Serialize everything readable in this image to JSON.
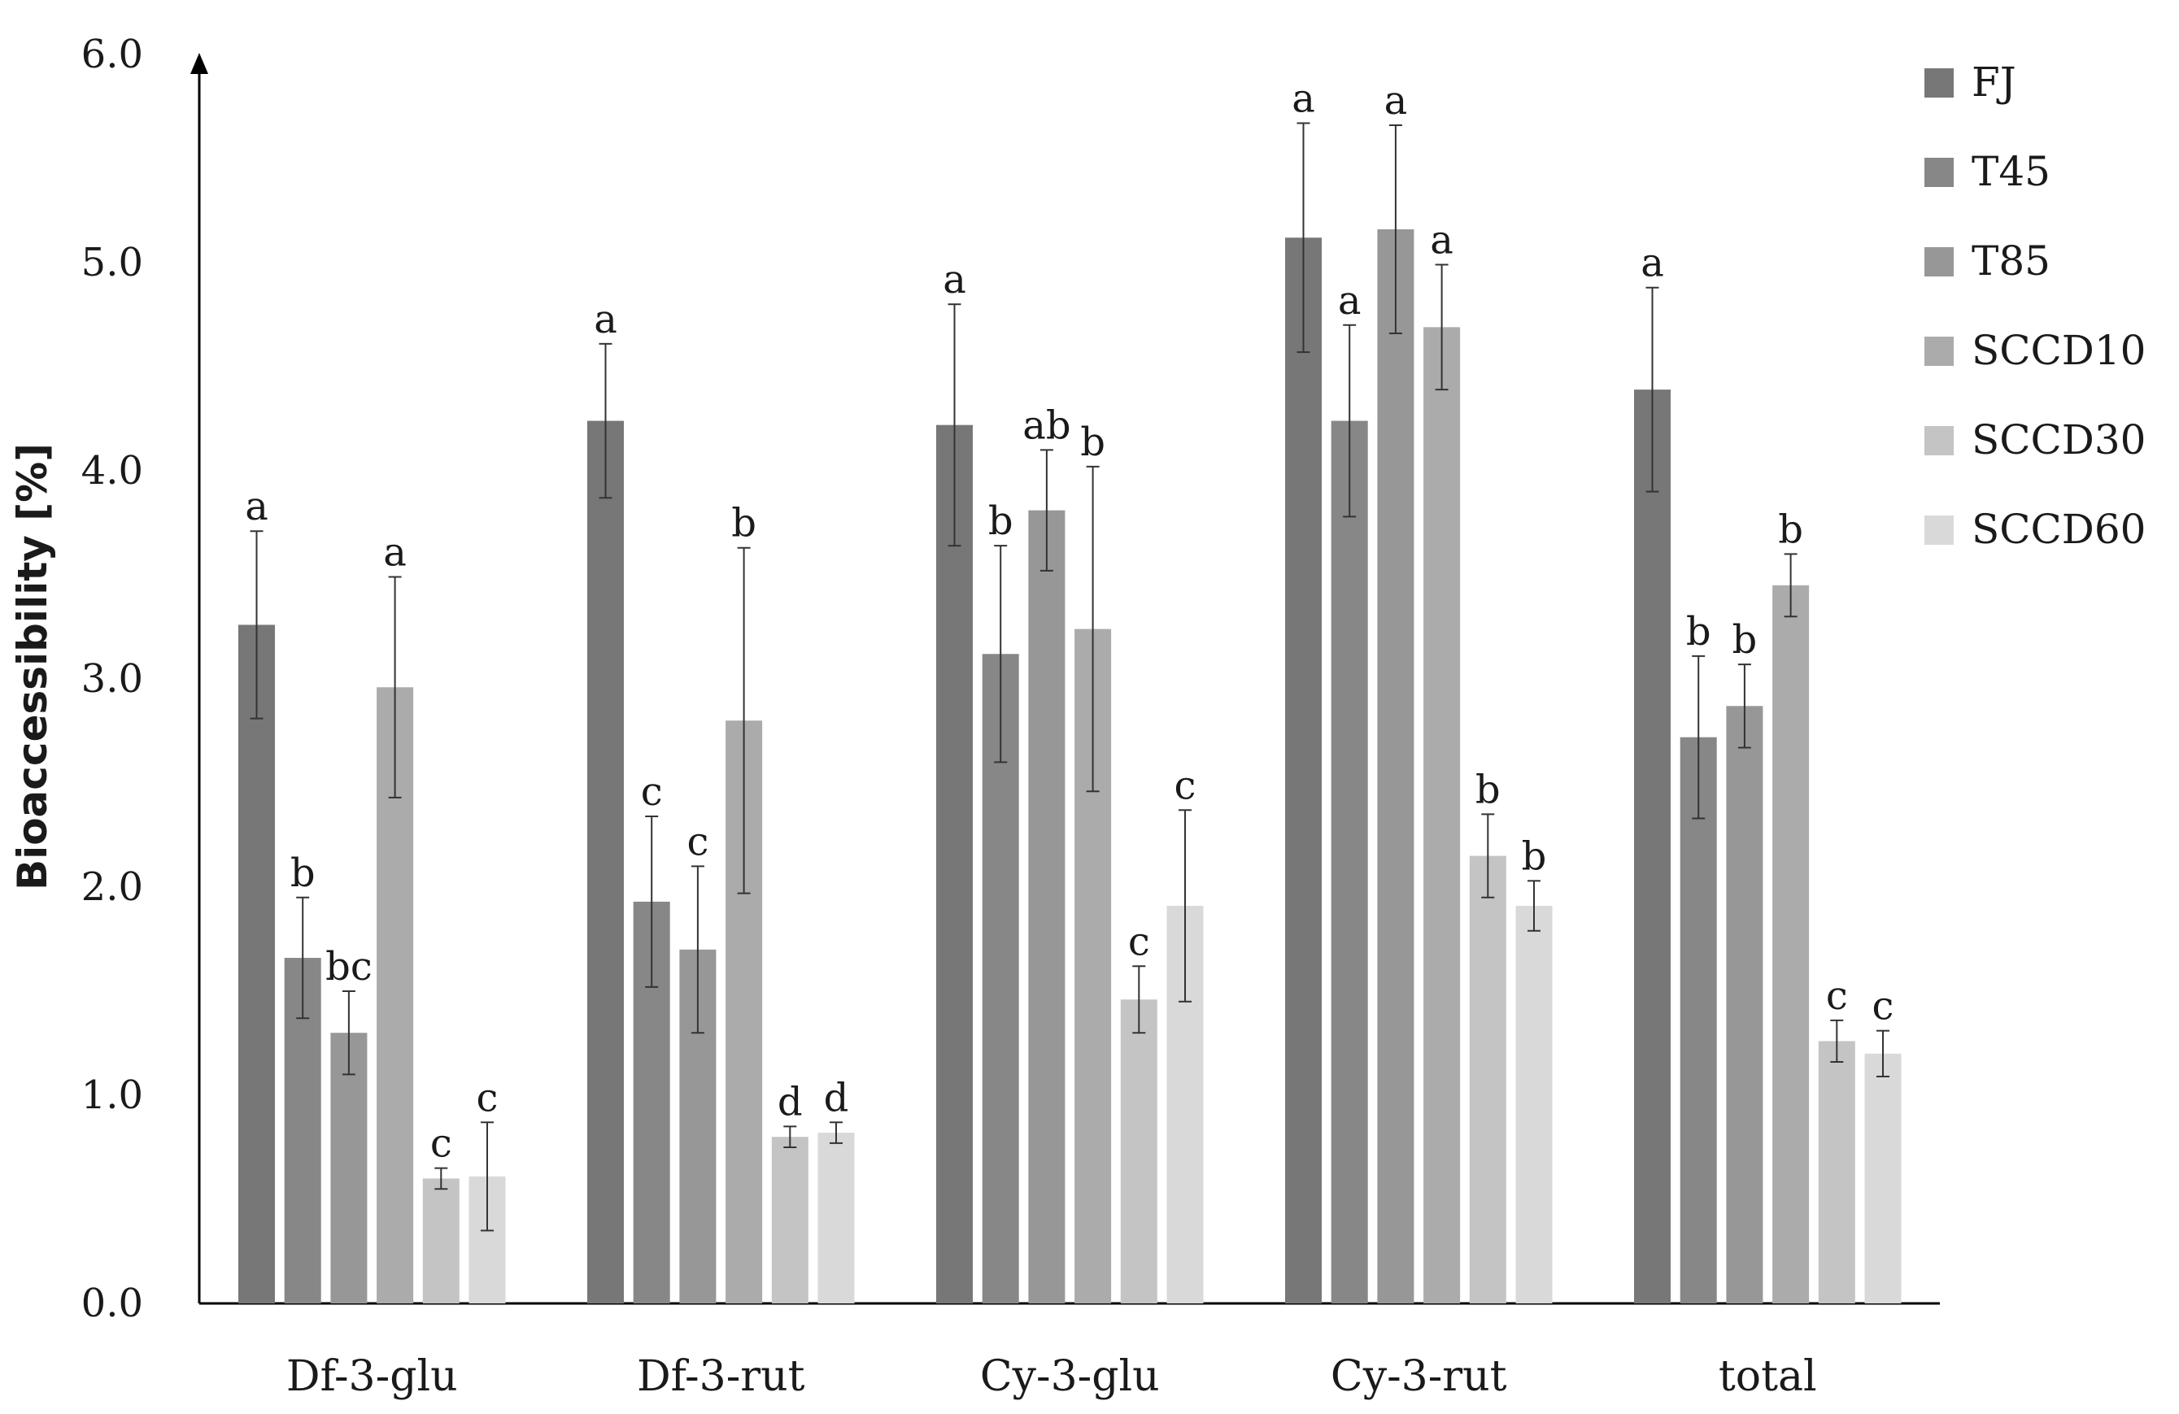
{
  "chart_data": {
    "type": "bar",
    "title": "",
    "xlabel": "",
    "ylabel": "Bioaccessibility [%]",
    "ylim": [
      0,
      6
    ],
    "yticks": [
      "0.0",
      "1.0",
      "2.0",
      "3.0",
      "4.0",
      "5.0",
      "6.0"
    ],
    "grid": false,
    "legend_position": "right",
    "categories": [
      "Df-3-glu",
      "Df-3-rut",
      "Cy-3-glu",
      "Cy-3-rut",
      "total"
    ],
    "series": [
      {
        "name": "FJ",
        "color": "#777777",
        "values": [
          3.26,
          4.24,
          4.22,
          5.12,
          4.39
        ],
        "errors": [
          0.45,
          0.37,
          0.58,
          0.55,
          0.49
        ],
        "letters": [
          "a",
          "a",
          "a",
          "a",
          "a"
        ]
      },
      {
        "name": "T45",
        "color": "#878787",
        "values": [
          1.66,
          1.93,
          3.12,
          4.24,
          2.72
        ],
        "errors": [
          0.29,
          0.41,
          0.52,
          0.46,
          0.39
        ],
        "letters": [
          "b",
          "c",
          "b",
          "a",
          "b"
        ]
      },
      {
        "name": "T85",
        "color": "#979797",
        "values": [
          1.3,
          1.7,
          3.81,
          5.16,
          2.87
        ],
        "errors": [
          0.2,
          0.4,
          0.29,
          0.5,
          0.2
        ],
        "letters": [
          "bc",
          "c",
          "ab",
          "a",
          "b"
        ]
      },
      {
        "name": "SCCD10",
        "color": "#ababab",
        "values": [
          2.96,
          2.8,
          3.24,
          4.69,
          3.45
        ],
        "errors": [
          0.53,
          0.83,
          0.78,
          0.3,
          0.15
        ],
        "letters": [
          "a",
          "b",
          "b",
          "a",
          "b"
        ]
      },
      {
        "name": "SCCD30",
        "color": "#c4c4c4",
        "values": [
          0.6,
          0.8,
          1.46,
          2.15,
          1.26
        ],
        "errors": [
          0.05,
          0.05,
          0.16,
          0.2,
          0.1
        ],
        "letters": [
          "c",
          "d",
          "c",
          "b",
          "c"
        ]
      },
      {
        "name": "SCCD60",
        "color": "#d9d9d9",
        "values": [
          0.61,
          0.82,
          1.91,
          1.91,
          1.2
        ],
        "errors": [
          0.26,
          0.05,
          0.46,
          0.12,
          0.11
        ],
        "letters": [
          "c",
          "d",
          "c",
          "b",
          "c"
        ]
      }
    ]
  }
}
